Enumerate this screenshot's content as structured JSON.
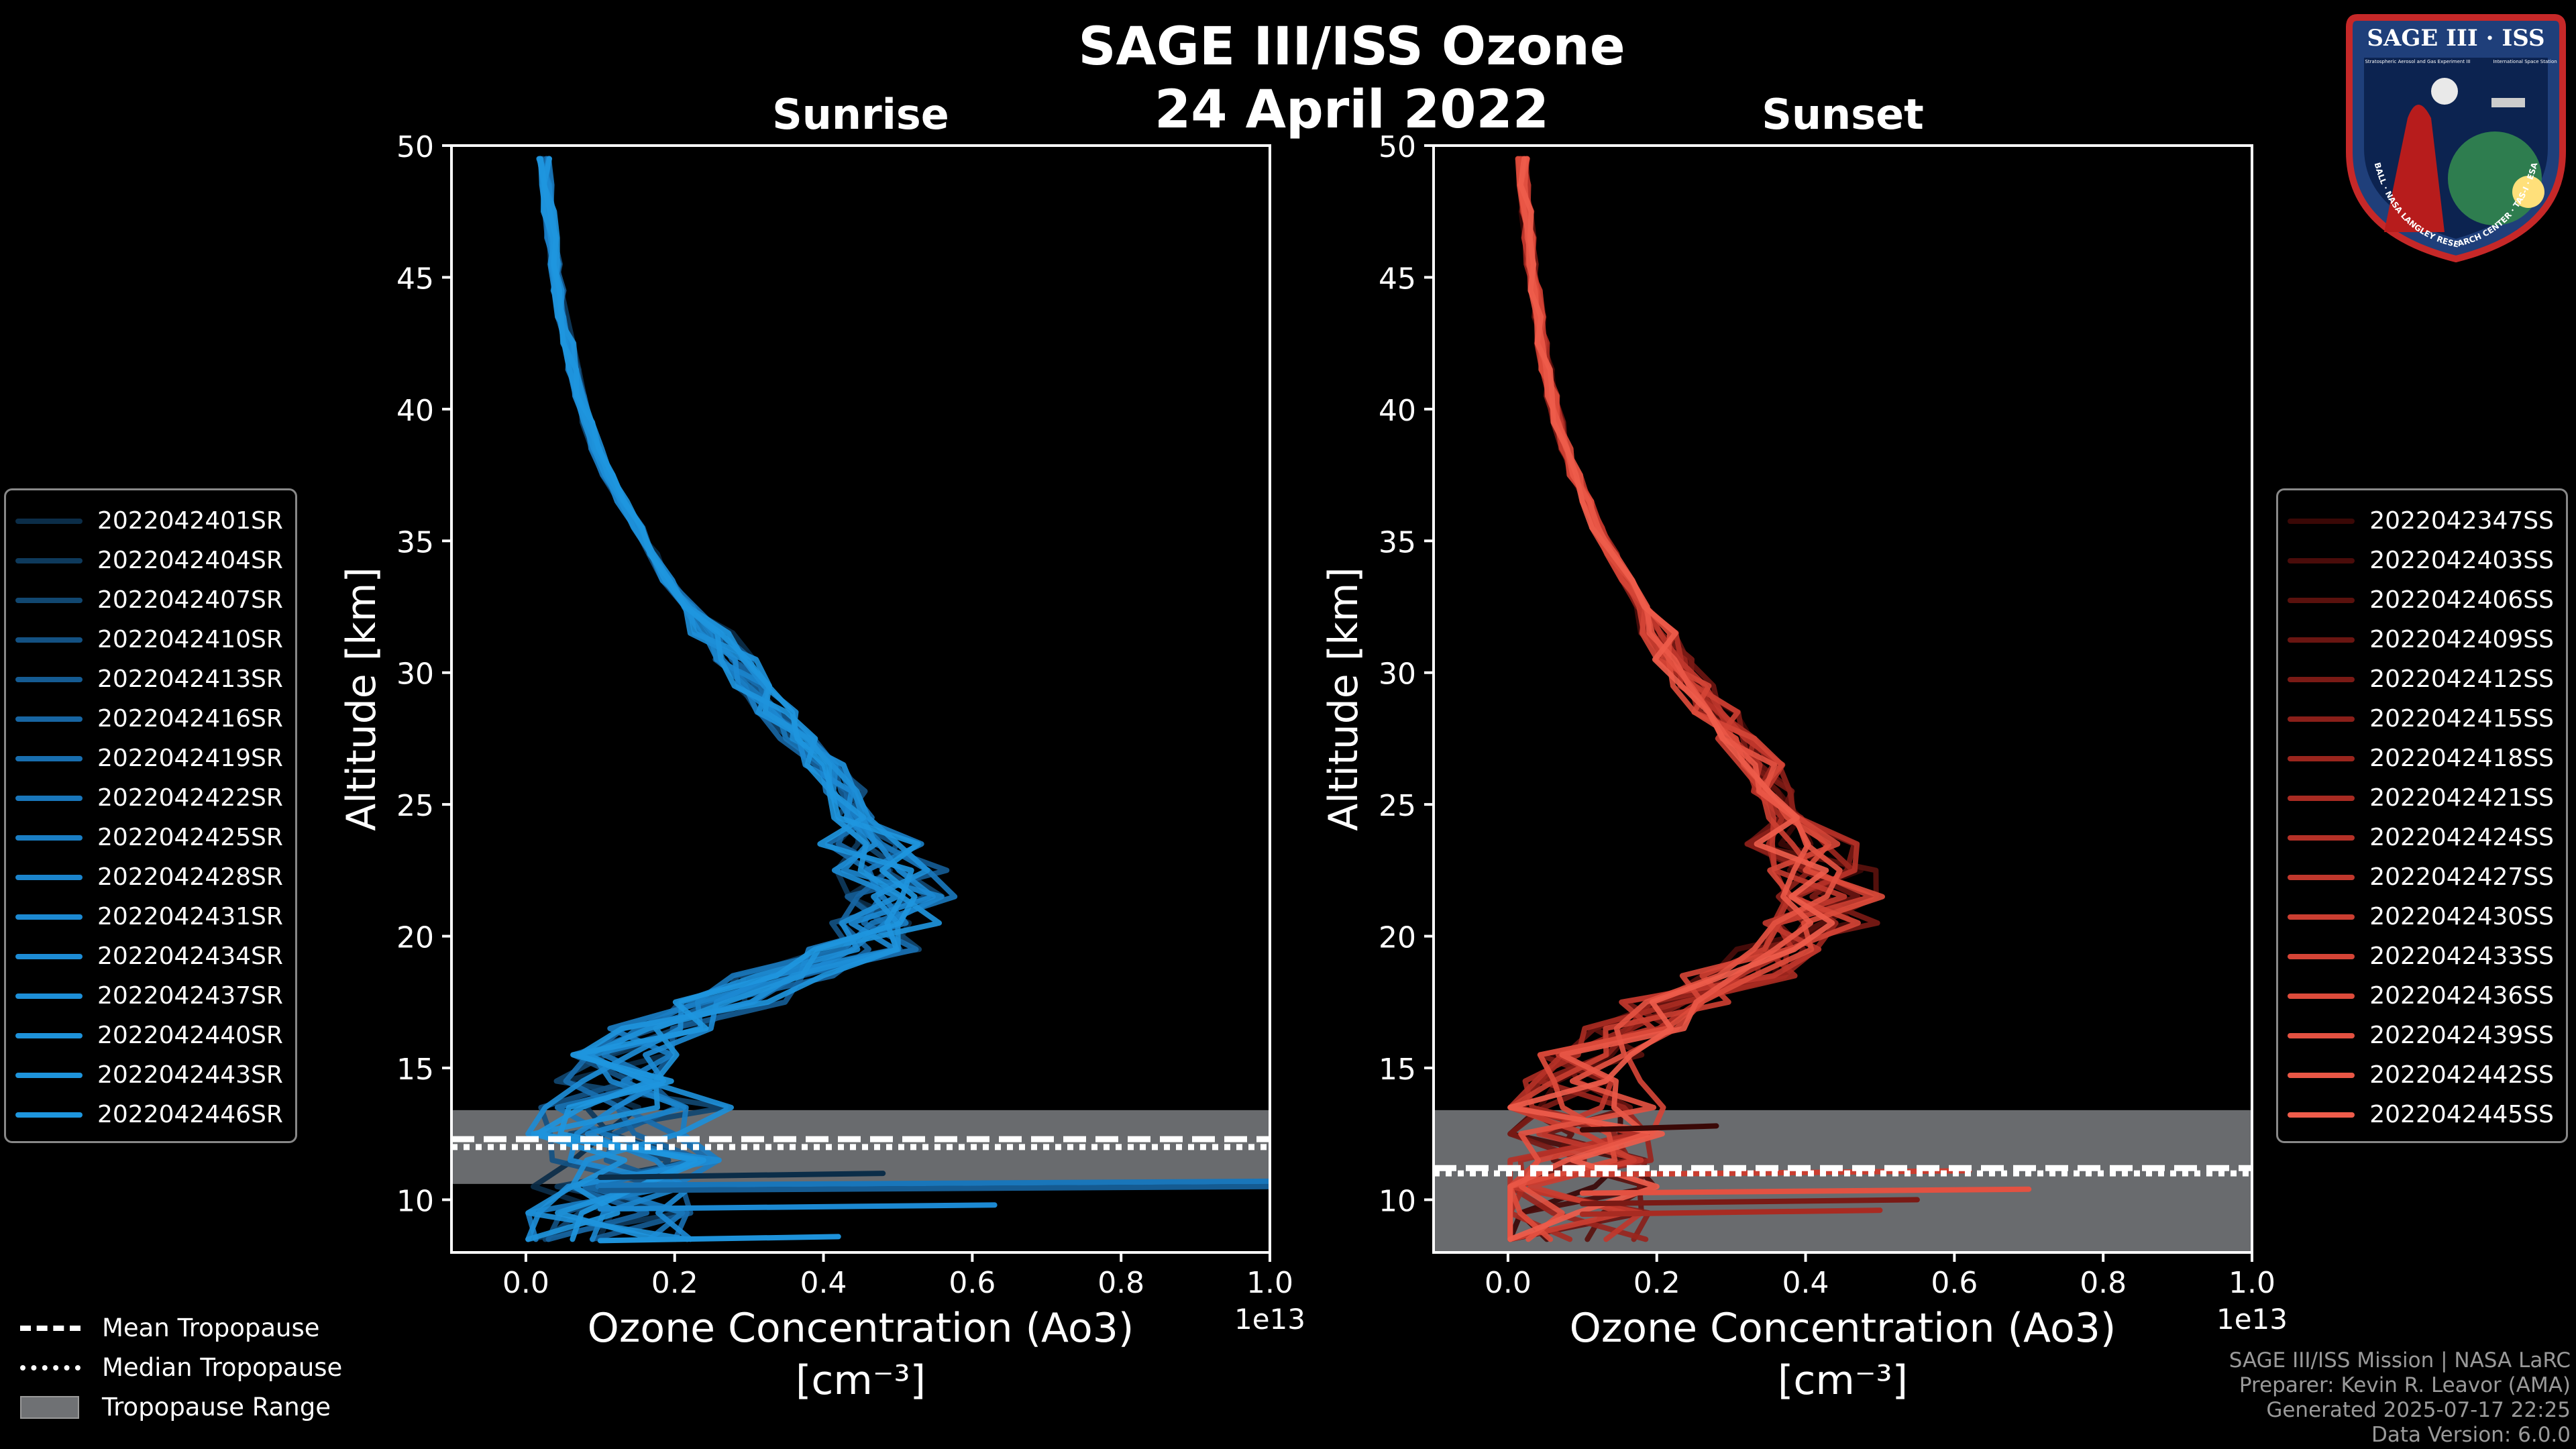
{
  "title": "SAGE III/ISS Ozone",
  "date": "24 April 2022",
  "colors": {
    "sunrise_accent": "#1e8fd5",
    "sunset_accent": "#ee5a48",
    "tropopause_band": "#6f7174",
    "background": "#000000"
  },
  "chart_data": [
    {
      "type": "line",
      "title": "Sunrise",
      "xlabel": "Ozone Concentration (Ao3)",
      "xunit": "[cm⁻³]",
      "x_multiplier": "1e13",
      "ylabel": "Altitude [km]",
      "xlim": [
        -0.1,
        1.0
      ],
      "ylim": [
        8,
        50
      ],
      "x_ticks": [
        "0.0",
        "0.2",
        "0.4",
        "0.6",
        "0.8",
        "1.0"
      ],
      "y_ticks": [
        "10",
        "15",
        "20",
        "25",
        "30",
        "35",
        "40",
        "45",
        "50"
      ],
      "grid": false,
      "altitude_km": [
        8.5,
        9.5,
        10.5,
        11.5,
        12.5,
        13.5,
        14.5,
        15.5,
        16.5,
        17.5,
        18.5,
        19.5,
        20.5,
        21.5,
        22.5,
        23.5,
        24.5,
        25.5,
        26.5,
        27.5,
        28.5,
        29.5,
        30.5,
        31.5,
        32.5,
        33.5,
        34.5,
        35.5,
        36.5,
        37.5,
        38.5,
        39.5,
        40.5,
        41.5,
        42.5,
        43.5,
        44.5,
        45.5,
        46.5,
        47.5,
        48.5,
        49.5
      ],
      "mean_profile": [
        0.1,
        0.1,
        0.11,
        0.13,
        0.12,
        0.15,
        0.12,
        0.13,
        0.19,
        0.27,
        0.35,
        0.45,
        0.49,
        0.5,
        0.49,
        0.46,
        0.44,
        0.43,
        0.4,
        0.37,
        0.34,
        0.31,
        0.28,
        0.25,
        0.22,
        0.19,
        0.17,
        0.15,
        0.13,
        0.11,
        0.095,
        0.083,
        0.073,
        0.064,
        0.057,
        0.05,
        0.044,
        0.04,
        0.035,
        0.031,
        0.028,
        0.025
      ],
      "series_names": [
        "2022042401SR",
        "2022042404SR",
        "2022042407SR",
        "2022042410SR",
        "2022042413SR",
        "2022042416SR",
        "2022042419SR",
        "2022042422SR",
        "2022042425SR",
        "2022042428SR",
        "2022042431SR",
        "2022042434SR",
        "2022042437SR",
        "2022042440SR",
        "2022042443SR",
        "2022042446SR"
      ],
      "series_colors": [
        "#0b2d48",
        "#0e3a5c",
        "#114770",
        "#135182",
        "#155b92",
        "#1765a2",
        "#186eaf",
        "#1976ba",
        "#1a7ec4",
        "#1b84cc",
        "#1c89d2",
        "#1d8cd5",
        "#1d8fd8",
        "#1e92da",
        "#1e94dc",
        "#1e96de"
      ],
      "outliers": [
        [
          10.5,
          1.0
        ],
        [
          10.7,
          1.0
        ],
        [
          9.8,
          0.63
        ],
        [
          8.6,
          0.42
        ],
        [
          11.0,
          0.48
        ]
      ],
      "tropopause": {
        "range_km": [
          10.6,
          13.4
        ],
        "mean_km": 12.3,
        "median_km": 12.0
      }
    },
    {
      "type": "line",
      "title": "Sunset",
      "xlabel": "Ozone Concentration (Ao3)",
      "xunit": "[cm⁻³]",
      "x_multiplier": "1e13",
      "ylabel": "Altitude [km]",
      "xlim": [
        -0.1,
        1.0
      ],
      "ylim": [
        8,
        50
      ],
      "x_ticks": [
        "0.0",
        "0.2",
        "0.4",
        "0.6",
        "0.8",
        "1.0"
      ],
      "y_ticks": [
        "10",
        "15",
        "20",
        "25",
        "30",
        "35",
        "40",
        "45",
        "50"
      ],
      "grid": false,
      "altitude_km": [
        8.5,
        9.5,
        10.5,
        11.5,
        12.5,
        13.5,
        14.5,
        15.5,
        16.5,
        17.5,
        18.5,
        19.5,
        20.5,
        21.5,
        22.5,
        23.5,
        24.5,
        25.5,
        26.5,
        27.5,
        28.5,
        29.5,
        30.5,
        31.5,
        32.5,
        33.5,
        34.5,
        35.5,
        36.5,
        37.5,
        38.5,
        39.5,
        40.5,
        41.5,
        42.5,
        43.5,
        44.5,
        45.5,
        46.5,
        47.5,
        48.5,
        49.5
      ],
      "mean_profile": [
        0.06,
        0.07,
        0.08,
        0.1,
        0.08,
        0.09,
        0.1,
        0.12,
        0.16,
        0.23,
        0.31,
        0.38,
        0.42,
        0.43,
        0.42,
        0.4,
        0.38,
        0.36,
        0.34,
        0.31,
        0.28,
        0.25,
        0.22,
        0.2,
        0.18,
        0.16,
        0.14,
        0.12,
        0.105,
        0.09,
        0.078,
        0.068,
        0.059,
        0.052,
        0.046,
        0.041,
        0.036,
        0.032,
        0.028,
        0.025,
        0.022,
        0.02
      ],
      "series_names": [
        "2022042347SS",
        "2022042403SS",
        "2022042406SS",
        "2022042409SS",
        "2022042412SS",
        "2022042415SS",
        "2022042418SS",
        "2022042421SS",
        "2022042424SS",
        "2022042427SS",
        "2022042430SS",
        "2022042433SS",
        "2022042436SS",
        "2022042439SS",
        "2022042442SS",
        "2022042445SS"
      ],
      "series_colors": [
        "#3a0806",
        "#4a0c0a",
        "#5a110d",
        "#6a1511",
        "#7a1a15",
        "#8a1f19",
        "#9a251d",
        "#a82b22",
        "#b53127",
        "#c0372c",
        "#ca3e31",
        "#d44436",
        "#dc4b3b",
        "#e35141",
        "#e95746",
        "#ee5c4b"
      ],
      "outliers": [
        [
          10.0,
          0.55
        ],
        [
          9.6,
          0.5
        ],
        [
          11.1,
          0.62
        ],
        [
          10.4,
          0.7
        ],
        [
          12.8,
          0.28
        ]
      ],
      "tropopause": {
        "range_km": [
          8.0,
          13.4
        ],
        "mean_km": 11.2,
        "median_km": 11.0
      }
    }
  ],
  "trop_legend": {
    "mean": "Mean Tropopause",
    "median": "Median Tropopause",
    "range": "Tropopause Range"
  },
  "footer": {
    "line1": "SAGE III/ISS Mission | NASA LaRC",
    "line2": "Preparer: Kevin R. Leavor (AMA)",
    "line3": "Generated 2025-07-17 22:25",
    "line4": "Data Version: 6.0.0"
  },
  "badge": {
    "title": "SAGE III · ISS",
    "subtitle": "Stratospheric Aerosol and Gas Experiment III",
    "subtitle2": "International Space Station",
    "ring": "BALL · NASA LANGLEY RESEARCH CENTER · TAS-I · ESA"
  }
}
